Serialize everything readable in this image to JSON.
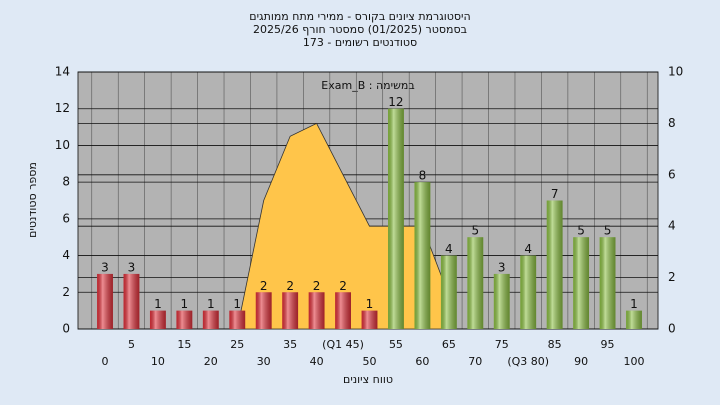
{
  "chart_data": {
    "type": "bar",
    "title": [
      "היסטוגרמת ציונים בקורס - ממירי מתח ממותגים",
      "בסמסטר  (01/2025)  סמסטר חורף 2025/26",
      "סטודנטים רשומים - 173"
    ],
    "annotation": "Exam_B : במשימה",
    "x_label": "טווח ציונים",
    "y_label": "מספר סטודנטים",
    "categories": [
      "0",
      "5",
      "10",
      "15",
      "20",
      "25",
      "30",
      "35",
      "40",
      "(Q1 45)",
      "50",
      "55",
      "60",
      "65",
      "70",
      "75",
      "(Q3 80)",
      "85",
      "90",
      "95",
      "100"
    ],
    "values": [
      3,
      3,
      1,
      1,
      1,
      1,
      2,
      2,
      2,
      2,
      1,
      12,
      8,
      4,
      5,
      3,
      4,
      7,
      5,
      5,
      1
    ],
    "colors": [
      "#e0303a",
      "#e0303a",
      "#e0303a",
      "#e0303a",
      "#e0303a",
      "#e0303a",
      "#e0303a",
      "#e0303a",
      "#e0303a",
      "#e0303a",
      "#e0303a",
      "#8cc043",
      "#8cc043",
      "#8cc043",
      "#8cc043",
      "#8cc043",
      "#8cc043",
      "#8cc043",
      "#8cc043",
      "#8cc043",
      "#8cc043"
    ],
    "area": {
      "color": "#ffc54a",
      "axis": "y2",
      "values": [
        null,
        null,
        null,
        null,
        null,
        0,
        5,
        7.5,
        8,
        6,
        4,
        4,
        4,
        1.3,
        null,
        null,
        null,
        null,
        null,
        null,
        null
      ]
    },
    "ylim": [
      0,
      14
    ],
    "yticks": [
      0,
      2,
      4,
      6,
      8,
      10,
      12,
      14
    ],
    "y2lim": [
      0,
      10
    ],
    "y2ticks": [
      0,
      2,
      4,
      6,
      8,
      10
    ],
    "grid": true
  }
}
